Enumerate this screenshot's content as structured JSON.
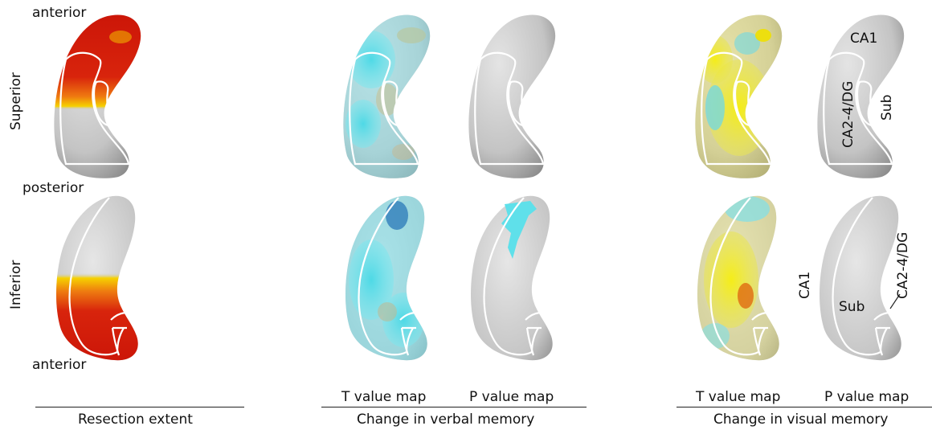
{
  "row_labels": {
    "superior": "Superior",
    "inferior": "Inferior"
  },
  "orientation": {
    "anterior_top": "anterior",
    "posterior": "posterior",
    "anterior_bottom": "anterior"
  },
  "panels": {
    "resection_superior": "heat",
    "resection_inferior": "heat",
    "verbal_t_superior": "cyan",
    "verbal_p_superior": "grey",
    "verbal_t_inferior": "cyan",
    "verbal_p_inferior": "cyan-patch",
    "visual_t_superior": "yellow",
    "visual_p_superior": "grey",
    "visual_t_inferior": "yellow",
    "visual_p_inferior": "grey"
  },
  "region_labels": {
    "superior": {
      "ca1": "CA1",
      "ca24dg": "CA2-4/DG",
      "sub": "Sub"
    },
    "inferior": {
      "ca1": "CA1",
      "ca24dg": "CA2-4/DG",
      "sub": "Sub",
      "ca24dg_lower": "CA2-4/DG"
    }
  },
  "column_labels": {
    "verbal_t": "T value map",
    "verbal_p": "P value map",
    "visual_t": "T value map",
    "visual_p": "P value map"
  },
  "group_labels": {
    "resection": "Resection extent",
    "verbal": "Change in verbal memory",
    "visual": "Change in visual memory"
  },
  "colors": {
    "surface": "#c8c8c8",
    "heat_red": "#d8200c",
    "heat_yellow": "#f2d000",
    "cyan": "#5fe0ea",
    "yellow": "#f4ec1c",
    "outline": "#ffffff"
  }
}
